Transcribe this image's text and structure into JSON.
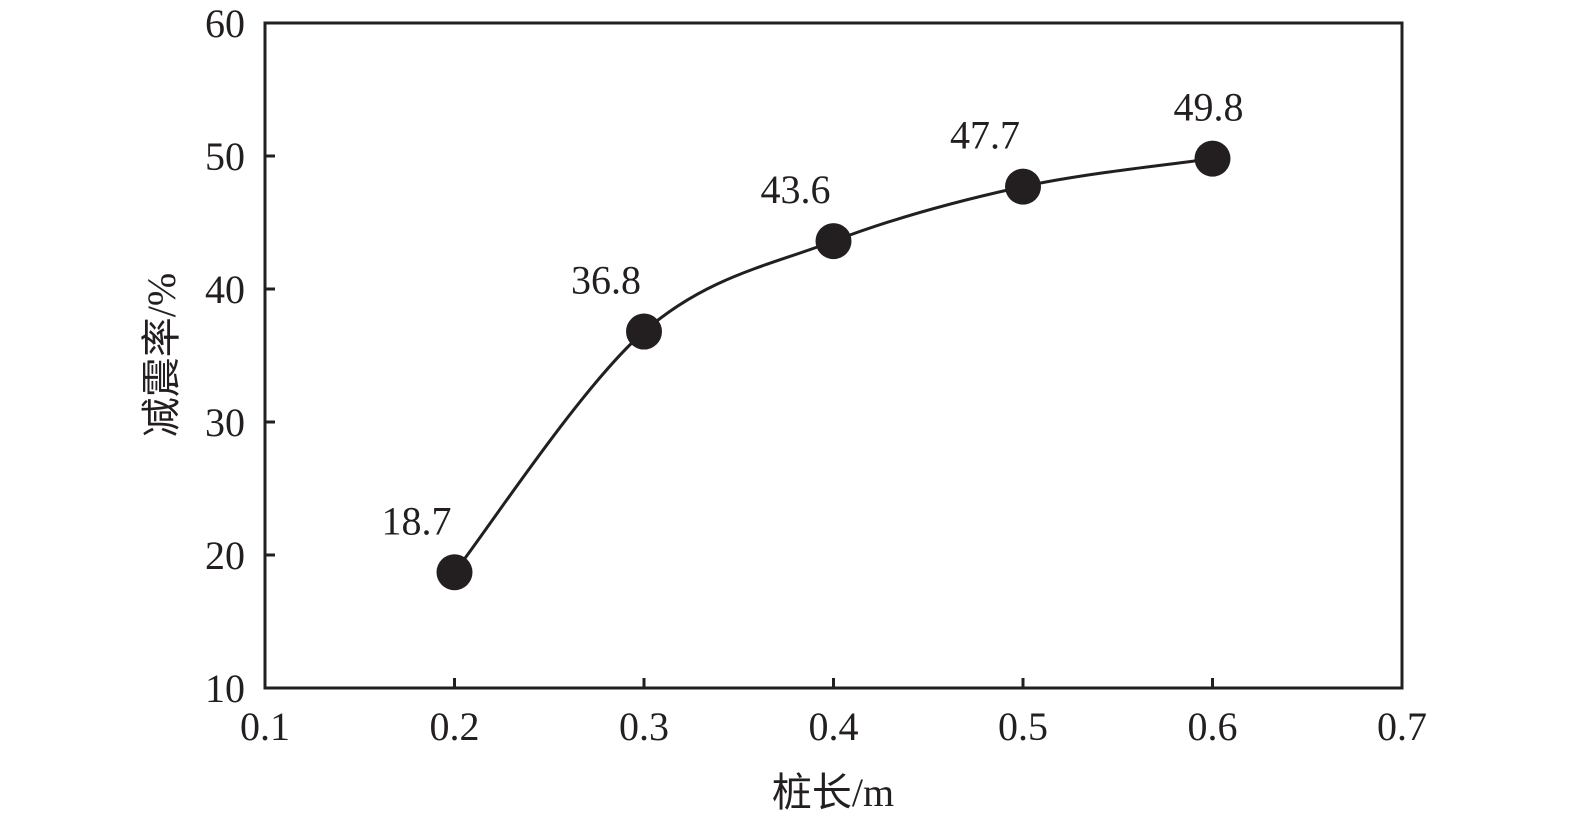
{
  "chart_data": {
    "type": "line",
    "title": "",
    "xlabel": "桩长/m",
    "ylabel": "减震率/%",
    "x": [
      0.2,
      0.3,
      0.4,
      0.5,
      0.6
    ],
    "series": [
      {
        "values": [
          18.7,
          36.8,
          43.6,
          47.7,
          49.8
        ],
        "data_labels": [
          "18.7",
          "36.8",
          "43.6",
          "47.7",
          "49.8"
        ]
      }
    ],
    "xlim": [
      0.1,
      0.7
    ],
    "ylim": [
      10,
      60
    ],
    "xticks": [
      0.1,
      0.2,
      0.3,
      0.4,
      0.5,
      0.6,
      0.7
    ],
    "xtick_labels": [
      "0.1",
      "0.2",
      "0.3",
      "0.4",
      "0.5",
      "0.6",
      "0.7"
    ],
    "yticks": [
      10,
      20,
      30,
      40,
      50,
      60
    ],
    "ytick_labels": [
      "10",
      "20",
      "30",
      "40",
      "50",
      "60"
    ],
    "marker": "filled-circle",
    "line_style": "smooth",
    "grid": false,
    "legend": "none",
    "colors": {
      "line": "#231f20",
      "marker": "#231f20",
      "axis": "#231f20",
      "text": "#231f20",
      "background": "#ffffff"
    }
  }
}
